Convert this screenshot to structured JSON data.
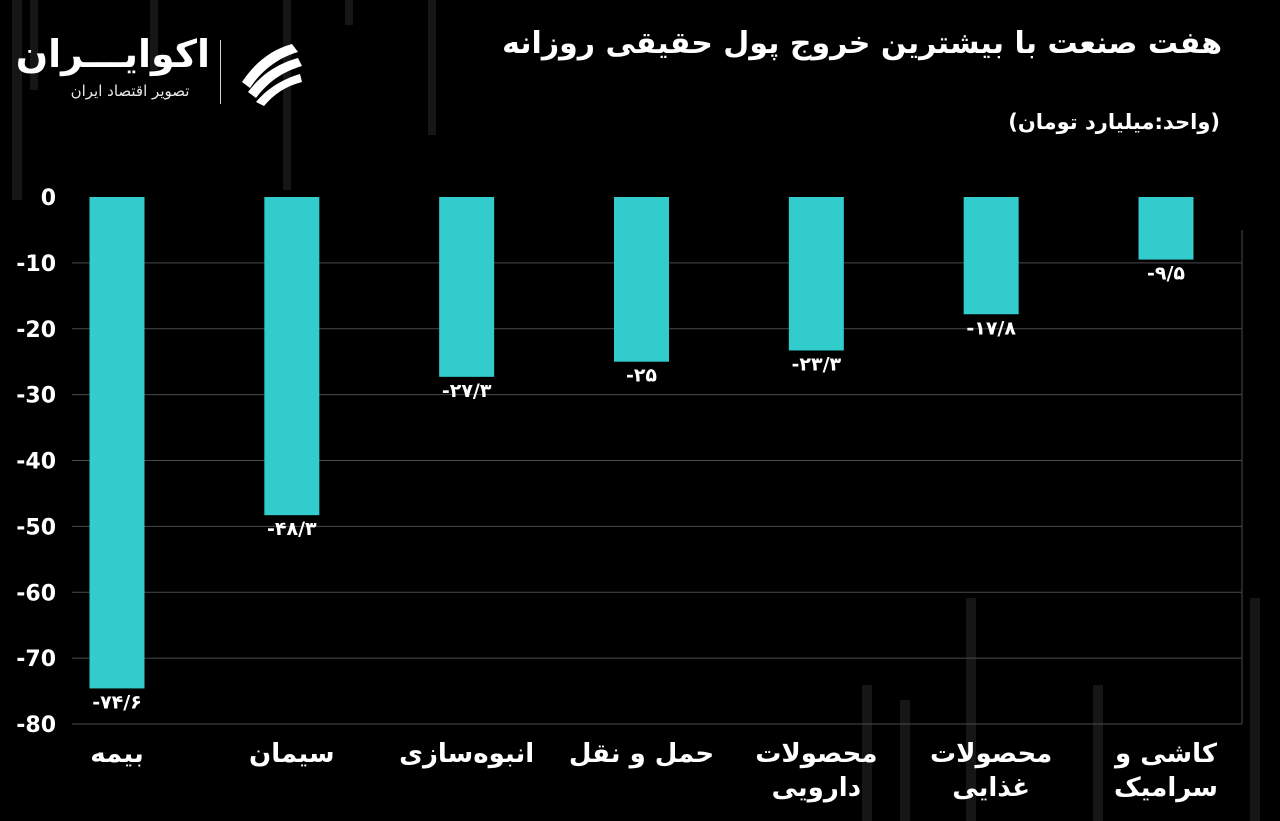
{
  "header": {
    "title": "هفت صنعت با بیشترین خروج پول حقیقی روزانه",
    "unit": "(واحد:میلیارد تومان)"
  },
  "brand": {
    "name": "اکوایـــران",
    "tagline": "تصویر اقتصاد ایران"
  },
  "colors": {
    "background": "#000000",
    "bar": "#33cccc",
    "text": "#ffffff",
    "grid": "#4a4a4a"
  },
  "chart_data": {
    "type": "bar",
    "title": "هفت صنعت با بیشترین خروج پول حقیقی روزانه",
    "ylabel": "(واحد:میلیارد تومان)",
    "ylim": [
      -80,
      0
    ],
    "yticks": [
      0,
      -10,
      -20,
      -30,
      -40,
      -50,
      -60,
      -70,
      -80
    ],
    "ytick_labels": [
      "0",
      "-10",
      "-20",
      "-30",
      "-40",
      "-50",
      "-60",
      "-70",
      "-80"
    ],
    "grid": true,
    "categories": [
      [
        "بیمه"
      ],
      [
        "سیمان"
      ],
      [
        "انبوه‌سازی"
      ],
      [
        "حمل و نقل"
      ],
      [
        "محصولات",
        "دارویی"
      ],
      [
        "محصولات",
        "غذایی"
      ],
      [
        "کاشی و",
        "سرامیک"
      ]
    ],
    "values": [
      -74.6,
      -48.3,
      -27.3,
      -25,
      -23.3,
      -17.8,
      -9.5
    ],
    "value_labels": [
      "-۷۴/۶",
      "-۴۸/۳",
      "-۲۷/۳",
      "-۲۵",
      "-۲۳/۳",
      "-۱۷/۸",
      "-۹/۵"
    ]
  }
}
